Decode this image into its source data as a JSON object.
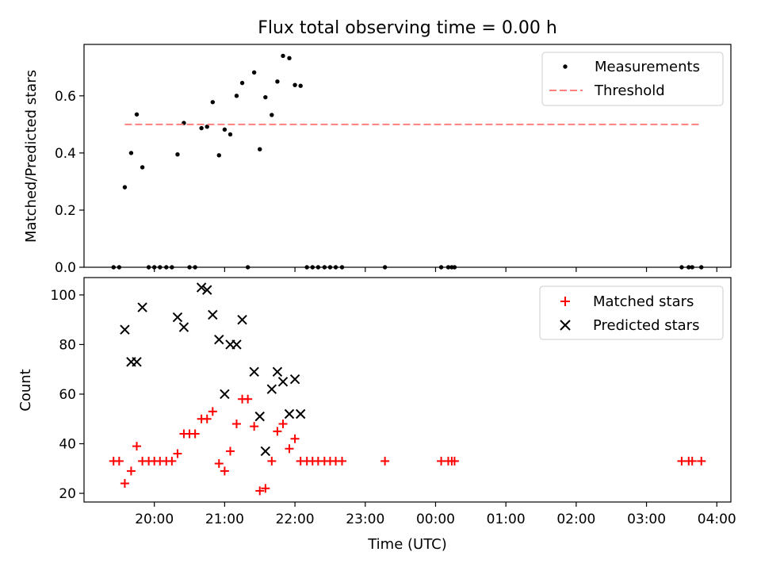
{
  "figure_title": "Flux total observing time = 0.00 h",
  "colors": {
    "measurement": "#000000",
    "threshold": "#ff7f7f",
    "matched": "#ff0000",
    "predicted": "#000000",
    "axis": "#000000"
  },
  "chart_data": [
    {
      "type": "scatter",
      "panel": "top",
      "title": "Flux total observing time = 0.00 h",
      "xlabel": "",
      "ylabel": "Matched/Predicted stars",
      "x_unit": "hours since 00:00 UTC",
      "xlim": [
        19.0,
        28.2
      ],
      "ylim": [
        0,
        0.78
      ],
      "yticks": [
        0.0,
        0.2,
        0.4,
        0.6
      ],
      "ytick_labels": [
        "0.0",
        "0.2",
        "0.4",
        "0.6"
      ],
      "xticks_hidden": true,
      "legend": {
        "location": "top-right",
        "entries": [
          "Measurements",
          "Threshold"
        ]
      },
      "series": [
        {
          "name": "Measurements",
          "marker": "dot",
          "color": "#000000",
          "x": [
            19.42,
            19.5,
            19.58,
            19.67,
            19.75,
            19.83,
            19.92,
            20.0,
            20.08,
            20.17,
            20.25,
            20.33,
            20.42,
            20.5,
            20.58,
            20.67,
            20.75,
            20.83,
            20.92,
            21.0,
            21.08,
            21.17,
            21.25,
            21.33,
            21.42,
            21.5,
            21.58,
            21.67,
            21.75,
            21.83,
            21.92,
            22.0,
            22.08,
            22.17,
            22.25,
            22.33,
            22.42,
            22.5,
            22.58,
            22.67,
            23.28,
            24.08,
            24.18,
            24.23,
            24.27,
            27.5,
            27.6,
            27.65,
            27.78
          ],
          "y": [
            0.0,
            0.0,
            0.28,
            0.4,
            0.535,
            0.35,
            0.0,
            0.0,
            0.0,
            0.0,
            0.0,
            0.395,
            0.505,
            0.0,
            0.0,
            0.487,
            0.492,
            0.578,
            0.392,
            0.482,
            0.465,
            0.6,
            0.645,
            0.0,
            0.682,
            0.413,
            0.595,
            0.533,
            0.65,
            0.74,
            0.732,
            0.638,
            0.635,
            0.0,
            0.0,
            0.0,
            0.0,
            0.0,
            0.0,
            0.0,
            0.0,
            0.0,
            0.0,
            0.0,
            0.0,
            0.0,
            0.0,
            0.0,
            0.0
          ]
        },
        {
          "name": "Threshold",
          "marker": "dashed-line",
          "color": "#ff7f7f",
          "x": [
            19.58,
            27.78
          ],
          "y": [
            0.5,
            0.5
          ]
        }
      ]
    },
    {
      "type": "scatter",
      "panel": "bottom",
      "xlabel": "Time (UTC)",
      "ylabel": "Count",
      "x_unit": "hours since 00:00 UTC",
      "xlim": [
        19.0,
        28.2
      ],
      "ylim": [
        16.5,
        107
      ],
      "yticks": [
        20,
        40,
        60,
        80,
        100
      ],
      "ytick_labels": [
        "20",
        "40",
        "60",
        "80",
        "100"
      ],
      "xticks": [
        20,
        21,
        22,
        23,
        24,
        25,
        26,
        27,
        28
      ],
      "xtick_labels": [
        "20:00",
        "21:00",
        "22:00",
        "23:00",
        "00:00",
        "01:00",
        "02:00",
        "03:00",
        "04:00"
      ],
      "legend": {
        "location": "top-right",
        "entries": [
          "Matched stars",
          "Predicted stars"
        ]
      },
      "series": [
        {
          "name": "Matched stars",
          "marker": "plus",
          "color": "#ff0000",
          "x": [
            19.42,
            19.5,
            19.58,
            19.67,
            19.75,
            19.83,
            19.92,
            20.0,
            20.08,
            20.17,
            20.25,
            20.33,
            20.42,
            20.5,
            20.58,
            20.67,
            20.75,
            20.83,
            20.92,
            21.0,
            21.08,
            21.17,
            21.25,
            21.33,
            21.42,
            21.5,
            21.58,
            21.67,
            21.75,
            21.83,
            21.92,
            22.0,
            22.08,
            22.17,
            22.25,
            22.33,
            22.42,
            22.5,
            22.58,
            22.67,
            23.28,
            24.08,
            24.18,
            24.23,
            24.27,
            27.5,
            27.6,
            27.65,
            27.78
          ],
          "y": [
            33,
            33,
            24,
            29,
            39,
            33,
            33,
            33,
            33,
            33,
            33,
            36,
            44,
            44,
            44,
            50,
            50,
            53,
            32,
            29,
            37,
            48,
            58,
            58,
            47,
            21,
            22,
            33,
            45,
            48,
            38,
            42,
            33,
            33,
            33,
            33,
            33,
            33,
            33,
            33,
            33,
            33,
            33,
            33,
            33,
            33,
            33,
            33,
            33
          ]
        },
        {
          "name": "Predicted stars",
          "marker": "x",
          "color": "#000000",
          "x": [
            19.58,
            19.67,
            19.75,
            19.83,
            20.33,
            20.42,
            20.67,
            20.75,
            20.83,
            20.92,
            21.0,
            21.08,
            21.17,
            21.25,
            21.42,
            21.5,
            21.58,
            21.67,
            21.75,
            21.83,
            21.92,
            22.0,
            22.08
          ],
          "y": [
            86,
            73,
            73,
            95,
            91,
            87,
            103,
            102,
            92,
            82,
            60,
            80,
            80,
            90,
            69,
            51,
            37,
            62,
            69,
            65,
            52,
            66,
            52
          ]
        }
      ]
    }
  ]
}
